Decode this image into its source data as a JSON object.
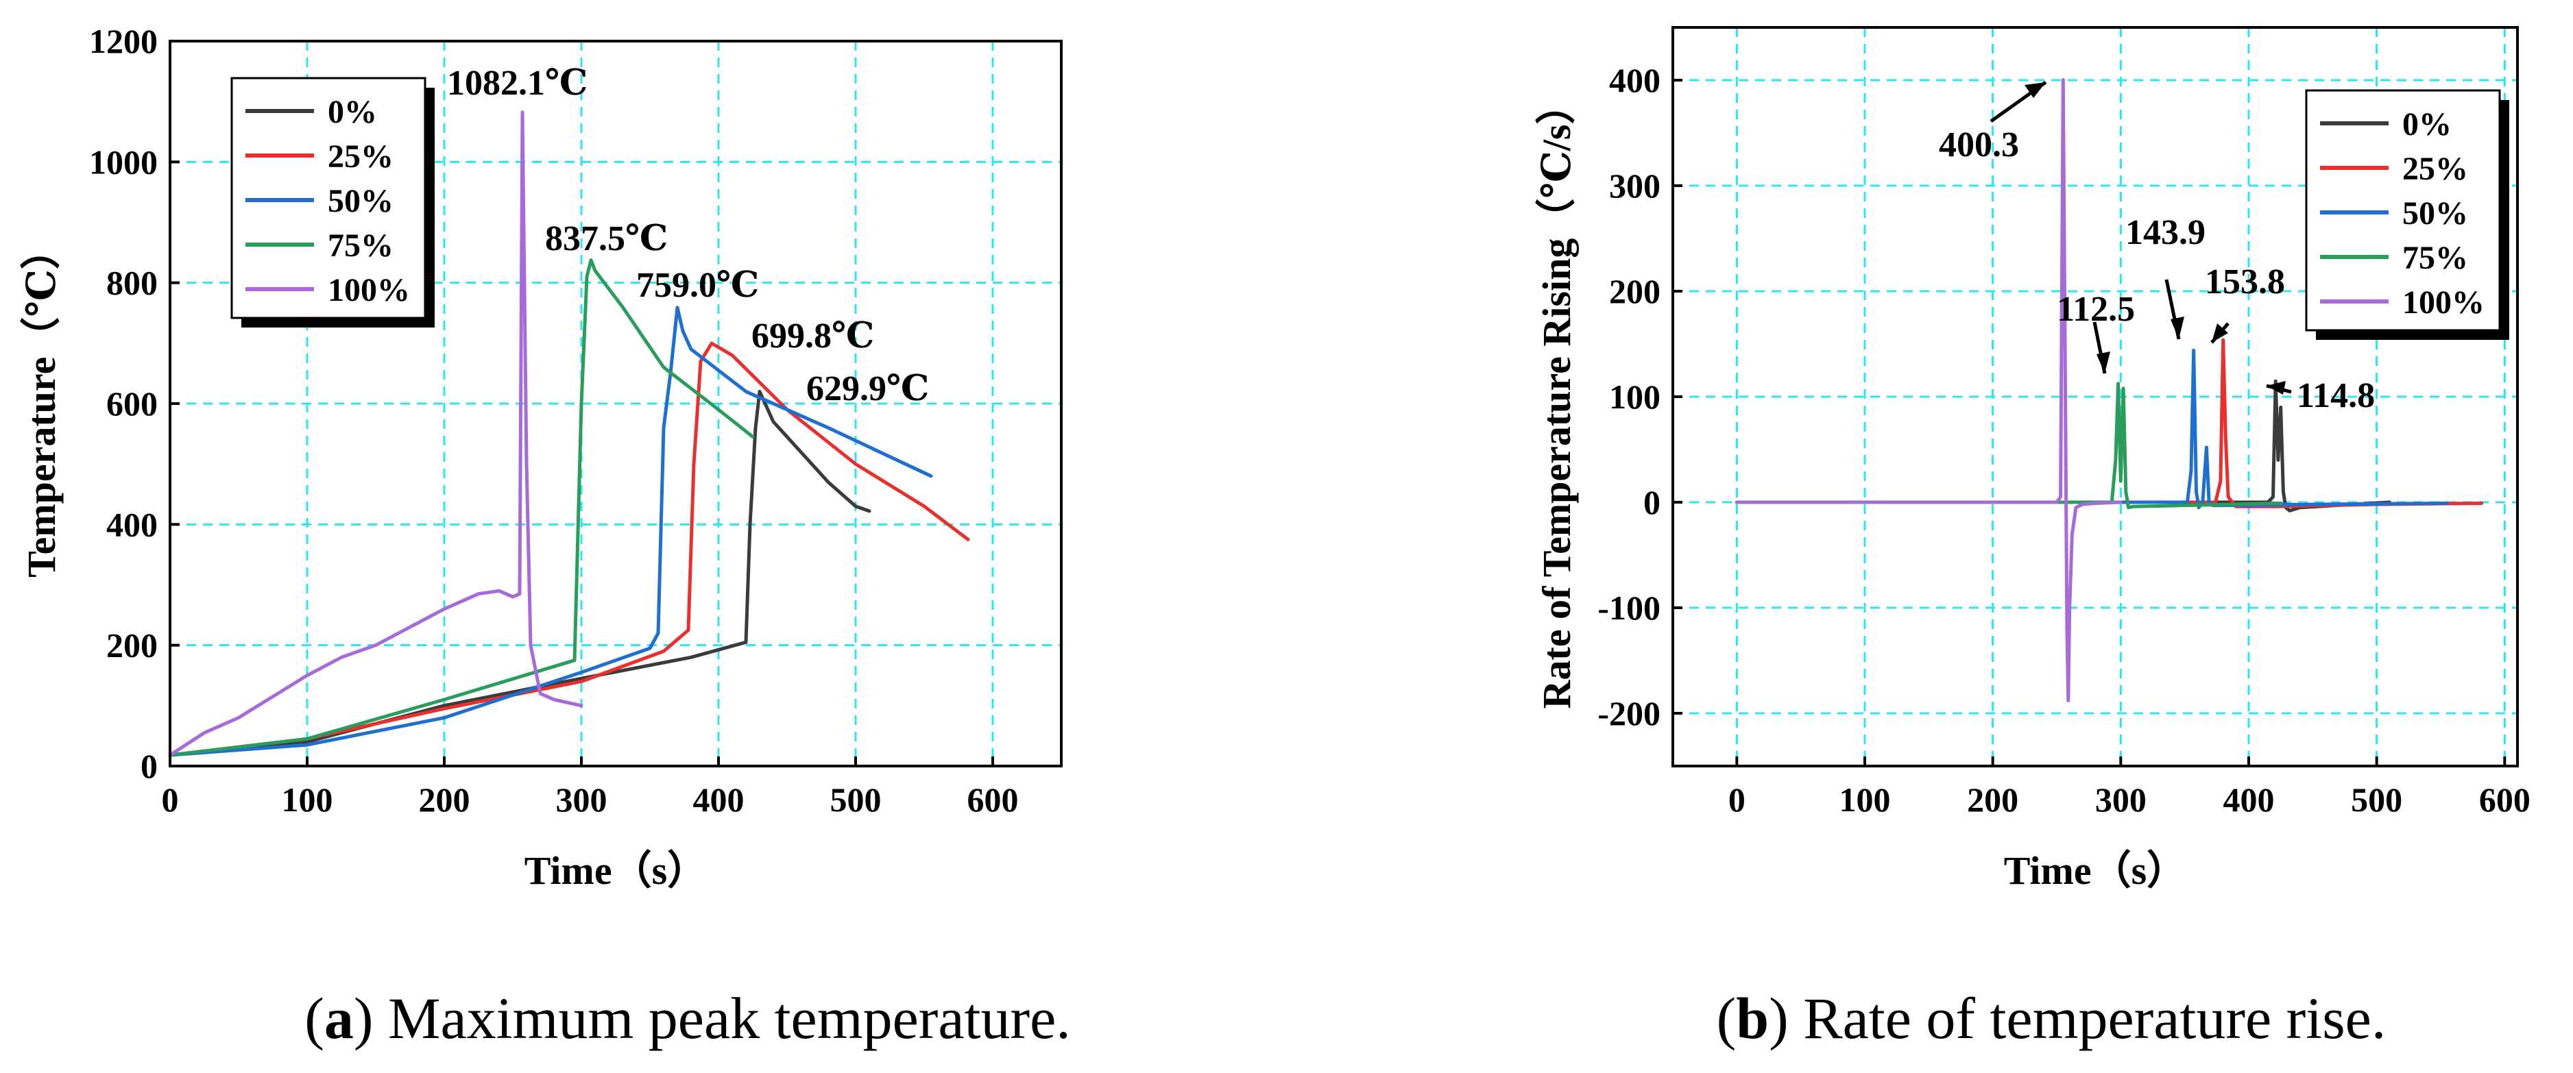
{
  "chart_data": [
    {
      "id": "a",
      "type": "line",
      "title": "",
      "xlabel": "Time（s）",
      "ylabel": "Temperature（℃）",
      "xlim": [
        0,
        650
      ],
      "ylim": [
        0,
        1200
      ],
      "xticks": [
        0,
        100,
        200,
        300,
        400,
        500,
        600
      ],
      "yticks": [
        0,
        200,
        400,
        600,
        800,
        1000,
        1200
      ],
      "grid": true,
      "legend_position": "top-left",
      "caption": {
        "label": "a",
        "text": ") Maximum peak temperature."
      },
      "series": [
        {
          "name": "0%",
          "color": "#3b3b3b",
          "x": [
            0,
            100,
            200,
            300,
            380,
            420,
            423,
            427,
            430,
            440,
            460,
            480,
            500,
            510
          ],
          "y": [
            18,
            40,
            100,
            145,
            180,
            205,
            400,
            560,
            620,
            570,
            520,
            470,
            430,
            422
          ]
        },
        {
          "name": "25%",
          "color": "#e8312f",
          "x": [
            0,
            100,
            200,
            300,
            360,
            378,
            382,
            387,
            395,
            410,
            450,
            500,
            550,
            582
          ],
          "y": [
            18,
            45,
            95,
            140,
            190,
            225,
            500,
            670,
            699.8,
            680,
            590,
            500,
            430,
            375
          ]
        },
        {
          "name": "50%",
          "color": "#1f6fd0",
          "x": [
            0,
            100,
            200,
            300,
            350,
            356,
            360,
            365,
            370,
            374,
            380,
            420,
            480,
            555
          ],
          "y": [
            18,
            35,
            80,
            155,
            195,
            220,
            560,
            650,
            759,
            720,
            690,
            620,
            560,
            480
          ]
        },
        {
          "name": "75%",
          "color": "#2a9d5c",
          "x": [
            0,
            100,
            200,
            295,
            300,
            304,
            307,
            310,
            330,
            360,
            400,
            425
          ],
          "y": [
            18,
            45,
            110,
            175,
            600,
            810,
            837.5,
            820,
            760,
            660,
            590,
            545
          ]
        },
        {
          "name": "100%",
          "color": "#a66bd8",
          "x": [
            0,
            25,
            50,
            75,
            100,
            125,
            150,
            175,
            200,
            225,
            240,
            250,
            255,
            257,
            260,
            263,
            270,
            280,
            300
          ],
          "y": [
            18,
            55,
            80,
            115,
            150,
            180,
            200,
            230,
            260,
            285,
            290,
            280,
            285,
            1082.1,
            500,
            200,
            120,
            110,
            100
          ]
        }
      ],
      "annotations": [
        {
          "text": "1082.1℃",
          "x": 257,
          "y": 1082.1
        },
        {
          "text": "837.5℃",
          "x": 307,
          "y": 837.5
        },
        {
          "text": "759.0℃",
          "x": 370,
          "y": 759
        },
        {
          "text": "699.8℃",
          "x": 395,
          "y": 699.8
        },
        {
          "text": "629.9℃",
          "x": 430,
          "y": 629.9
        }
      ]
    },
    {
      "id": "b",
      "type": "line",
      "title": "",
      "xlabel": "Time（s）",
      "ylabel": "Rate of Temperature Rising（℃/s）",
      "xlim": [
        -50,
        610
      ],
      "ylim": [
        -250,
        450
      ],
      "xticks": [
        0,
        100,
        200,
        300,
        400,
        500,
        600
      ],
      "yticks": [
        -200,
        -100,
        0,
        100,
        200,
        300,
        400
      ],
      "grid": true,
      "legend_position": "top-right",
      "caption": {
        "label": "b",
        "text": ") Rate of temperature rise."
      },
      "series": [
        {
          "name": "0%",
          "color": "#3b3b3b",
          "x": [
            0,
            415,
            419,
            421,
            423,
            425,
            427,
            429,
            432,
            440,
            510
          ],
          "y": [
            0,
            0,
            5,
            114.8,
            40,
            90,
            10,
            -5,
            -8,
            -5,
            0
          ]
        },
        {
          "name": "25%",
          "color": "#e8312f",
          "x": [
            0,
            374,
            378,
            380,
            382,
            384,
            390,
            420,
            500,
            582
          ],
          "y": [
            0,
            0,
            20,
            153.8,
            60,
            5,
            -4,
            -4,
            -2,
            -1
          ]
        },
        {
          "name": "50%",
          "color": "#1f6fd0",
          "x": [
            0,
            352,
            355,
            357,
            359,
            361,
            364,
            367,
            369,
            372,
            380,
            450,
            555
          ],
          "y": [
            0,
            0,
            30,
            143.9,
            10,
            -5,
            0,
            52,
            0,
            -3,
            -3,
            -2,
            -1
          ]
        },
        {
          "name": "75%",
          "color": "#2a9d5c",
          "x": [
            0,
            293,
            296,
            298,
            300,
            302,
            304,
            306,
            310,
            350,
            425
          ],
          "y": [
            0,
            0,
            40,
            112.5,
            20,
            108,
            10,
            -5,
            -4,
            -3,
            -1
          ]
        },
        {
          "name": "100%",
          "color": "#a66bd8",
          "x": [
            0,
            100,
            250,
            253,
            255,
            257,
            258,
            259,
            260,
            262,
            265,
            270,
            280,
            300
          ],
          "y": [
            0,
            0,
            0,
            5,
            400.3,
            50,
            -120,
            -188,
            -100,
            -30,
            -5,
            -2,
            -1,
            0
          ]
        }
      ],
      "annotations": [
        {
          "text": "400.3",
          "x": 255,
          "y": 400.3
        },
        {
          "text": "112.5",
          "x": 298,
          "y": 112.5
        },
        {
          "text": "143.9",
          "x": 357,
          "y": 143.9
        },
        {
          "text": "153.8",
          "x": 380,
          "y": 153.8
        },
        {
          "text": "114.8",
          "x": 421,
          "y": 114.8
        }
      ]
    }
  ]
}
